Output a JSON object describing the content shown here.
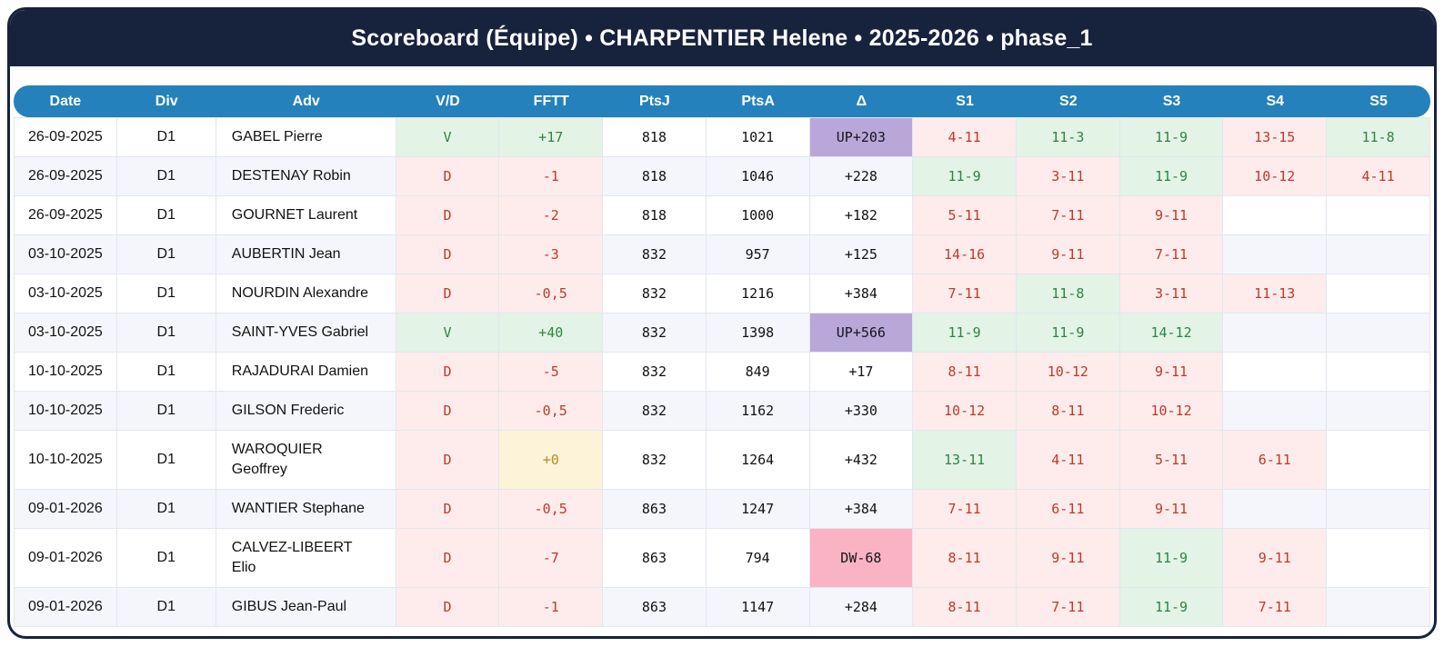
{
  "title": "Scoreboard (Équipe) • CHARPENTIER Helene • 2025-2026 • phase_1",
  "colors": {
    "card_navy": "#17233d",
    "header_blue": "#2581bb",
    "win_text": "#2e8540",
    "win_bg": "#e3f3e6",
    "loss_text": "#c0392b",
    "loss_bg": "#fdeceb",
    "zero_text": "#bd8a1d",
    "zero_bg": "#fcf3d9",
    "delta_up_bg": "#b9a7da",
    "delta_down_bg": "#f9b3c4",
    "row_alt_bg": "#f4f6fb"
  },
  "table": {
    "columns": [
      "Date",
      "Div",
      "Adv",
      "V/D",
      "FFTT",
      "PtsJ",
      "PtsA",
      "Δ",
      "S1",
      "S2",
      "S3",
      "S4",
      "S5"
    ],
    "rows": [
      {
        "date": "26-09-2025",
        "div": "D1",
        "adv": "GABEL Pierre",
        "vd": "V",
        "fftt": "+17",
        "ptsj": "818",
        "ptsa": "1021",
        "delta": "UP+203",
        "delta_type": "up",
        "sets": [
          {
            "score": "4-11",
            "result": "loss"
          },
          {
            "score": "11-3",
            "result": "win"
          },
          {
            "score": "11-9",
            "result": "win"
          },
          {
            "score": "13-15",
            "result": "loss"
          },
          {
            "score": "11-8",
            "result": "win"
          }
        ]
      },
      {
        "date": "26-09-2025",
        "div": "D1",
        "adv": "DESTENAY Robin",
        "vd": "D",
        "fftt": "-1",
        "ptsj": "818",
        "ptsa": "1046",
        "delta": "+228",
        "delta_type": "none",
        "sets": [
          {
            "score": "11-9",
            "result": "win"
          },
          {
            "score": "3-11",
            "result": "loss"
          },
          {
            "score": "11-9",
            "result": "win"
          },
          {
            "score": "10-12",
            "result": "loss"
          },
          {
            "score": "4-11",
            "result": "loss"
          }
        ]
      },
      {
        "date": "26-09-2025",
        "div": "D1",
        "adv": "GOURNET Laurent",
        "vd": "D",
        "fftt": "-2",
        "ptsj": "818",
        "ptsa": "1000",
        "delta": "+182",
        "delta_type": "none",
        "sets": [
          {
            "score": "5-11",
            "result": "loss"
          },
          {
            "score": "7-11",
            "result": "loss"
          },
          {
            "score": "9-11",
            "result": "loss"
          }
        ]
      },
      {
        "date": "03-10-2025",
        "div": "D1",
        "adv": "AUBERTIN Jean",
        "vd": "D",
        "fftt": "-3",
        "ptsj": "832",
        "ptsa": "957",
        "delta": "+125",
        "delta_type": "none",
        "sets": [
          {
            "score": "14-16",
            "result": "loss"
          },
          {
            "score": "9-11",
            "result": "loss"
          },
          {
            "score": "7-11",
            "result": "loss"
          }
        ]
      },
      {
        "date": "03-10-2025",
        "div": "D1",
        "adv": "NOURDIN Alexandre",
        "vd": "D",
        "fftt": "-0,5",
        "ptsj": "832",
        "ptsa": "1216",
        "delta": "+384",
        "delta_type": "none",
        "sets": [
          {
            "score": "7-11",
            "result": "loss"
          },
          {
            "score": "11-8",
            "result": "win"
          },
          {
            "score": "3-11",
            "result": "loss"
          },
          {
            "score": "11-13",
            "result": "loss"
          }
        ]
      },
      {
        "date": "03-10-2025",
        "div": "D1",
        "adv": "SAINT-YVES Gabriel",
        "vd": "V",
        "fftt": "+40",
        "ptsj": "832",
        "ptsa": "1398",
        "delta": "UP+566",
        "delta_type": "up",
        "sets": [
          {
            "score": "11-9",
            "result": "win"
          },
          {
            "score": "11-9",
            "result": "win"
          },
          {
            "score": "14-12",
            "result": "win"
          }
        ]
      },
      {
        "date": "10-10-2025",
        "div": "D1",
        "adv": "RAJADURAI Damien",
        "vd": "D",
        "fftt": "-5",
        "ptsj": "832",
        "ptsa": "849",
        "delta": "+17",
        "delta_type": "none",
        "sets": [
          {
            "score": "8-11",
            "result": "loss"
          },
          {
            "score": "10-12",
            "result": "loss"
          },
          {
            "score": "9-11",
            "result": "loss"
          }
        ]
      },
      {
        "date": "10-10-2025",
        "div": "D1",
        "adv": "GILSON Frederic",
        "vd": "D",
        "fftt": "-0,5",
        "ptsj": "832",
        "ptsa": "1162",
        "delta": "+330",
        "delta_type": "none",
        "sets": [
          {
            "score": "10-12",
            "result": "loss"
          },
          {
            "score": "8-11",
            "result": "loss"
          },
          {
            "score": "10-12",
            "result": "loss"
          }
        ]
      },
      {
        "date": "10-10-2025",
        "div": "D1",
        "adv": "WAROQUIER Geoffrey",
        "vd": "D",
        "fftt": "+0",
        "ptsj": "832",
        "ptsa": "1264",
        "delta": "+432",
        "delta_type": "none",
        "sets": [
          {
            "score": "13-11",
            "result": "win"
          },
          {
            "score": "4-11",
            "result": "loss"
          },
          {
            "score": "5-11",
            "result": "loss"
          },
          {
            "score": "6-11",
            "result": "loss"
          }
        ]
      },
      {
        "date": "09-01-2026",
        "div": "D1",
        "adv": "WANTIER Stephane",
        "vd": "D",
        "fftt": "-0,5",
        "ptsj": "863",
        "ptsa": "1247",
        "delta": "+384",
        "delta_type": "none",
        "sets": [
          {
            "score": "7-11",
            "result": "loss"
          },
          {
            "score": "6-11",
            "result": "loss"
          },
          {
            "score": "9-11",
            "result": "loss"
          }
        ]
      },
      {
        "date": "09-01-2026",
        "div": "D1",
        "adv": "CALVEZ-LIBEERT Elio",
        "vd": "D",
        "fftt": "-7",
        "ptsj": "863",
        "ptsa": "794",
        "delta": "DW-68",
        "delta_type": "down",
        "sets": [
          {
            "score": "8-11",
            "result": "loss"
          },
          {
            "score": "9-11",
            "result": "loss"
          },
          {
            "score": "11-9",
            "result": "win"
          },
          {
            "score": "9-11",
            "result": "loss"
          }
        ]
      },
      {
        "date": "09-01-2026",
        "div": "D1",
        "adv": "GIBUS Jean-Paul",
        "vd": "D",
        "fftt": "-1",
        "ptsj": "863",
        "ptsa": "1147",
        "delta": "+284",
        "delta_type": "none",
        "sets": [
          {
            "score": "8-11",
            "result": "loss"
          },
          {
            "score": "7-11",
            "result": "loss"
          },
          {
            "score": "11-9",
            "result": "win"
          },
          {
            "score": "7-11",
            "result": "loss"
          }
        ]
      }
    ]
  }
}
